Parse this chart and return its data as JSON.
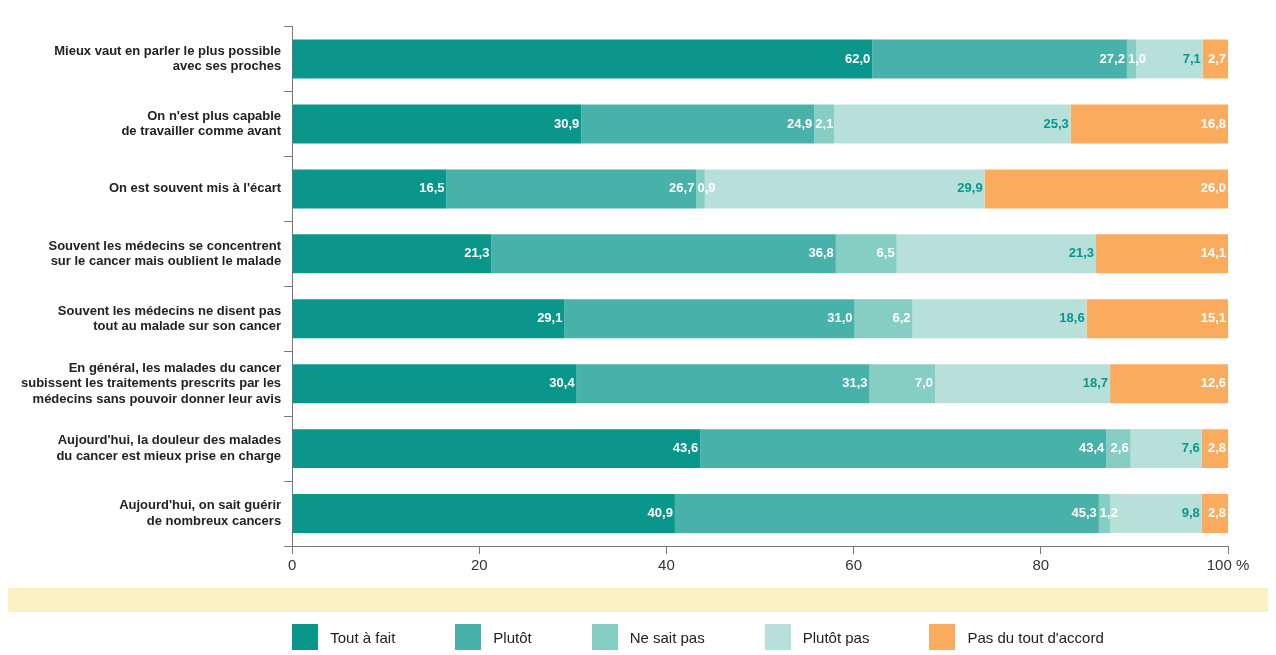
{
  "chart_data": {
    "type": "bar",
    "orientation": "horizontal",
    "stacked": true,
    "categories": [
      "Mieux vaut en parler le plus possible\navec ses proches",
      "On n'est plus capable\nde travailler comme avant",
      "On est souvent mis à l'écart",
      "Souvent les médecins se concentrent\nsur le cancer mais oublient le malade",
      "Souvent les médecins ne disent pas\ntout au malade sur son cancer",
      "En général, les malades du cancer\nsubissent les traitements prescrits par les\nmédecins sans pouvoir donner leur avis",
      "Aujourd'hui, la douleur des malades\ndu cancer est mieux prise en charge",
      "Aujourd'hui, on sait guérir\nde nombreux cancers"
    ],
    "series": [
      {
        "name": "Tout à fait",
        "color": "#0a968a",
        "values": [
          62.0,
          30.9,
          16.5,
          21.3,
          29.1,
          30.4,
          43.6,
          40.9
        ],
        "value_labels": [
          "62,0",
          "30,9",
          "16,5",
          "21,3",
          "29,1",
          "30,4",
          "43,6",
          "40,9"
        ]
      },
      {
        "name": "Plutôt",
        "color": "#48b2aa",
        "values": [
          27.2,
          24.9,
          26.7,
          36.8,
          31.0,
          31.3,
          43.4,
          45.3
        ],
        "value_labels": [
          "27,2",
          "24,9",
          "26,7",
          "36,8",
          "31,0",
          "31,3",
          "43,4",
          "45,3"
        ]
      },
      {
        "name": "Ne sait pas",
        "color": "#86cdc4",
        "values": [
          1.0,
          2.1,
          0.9,
          6.5,
          6.2,
          7.0,
          2.6,
          1.2
        ],
        "value_labels": [
          "1,0",
          "2,1",
          "0,9",
          "6,5",
          "6,2",
          "7,0",
          "2,6",
          "1,2"
        ]
      },
      {
        "name": "Plutôt pas",
        "color": "#b7e0db",
        "values": [
          7.1,
          25.3,
          29.9,
          21.3,
          18.6,
          18.7,
          7.6,
          9.8
        ],
        "value_labels": [
          "7,1",
          "25,3",
          "29,9",
          "21,3",
          "18,6",
          "18,7",
          "7,6",
          "9,8"
        ]
      },
      {
        "name": "Pas du tout d'accord",
        "color": "#fbab5e",
        "values": [
          2.7,
          16.8,
          26.0,
          14.1,
          15.1,
          12.6,
          2.8,
          2.8
        ],
        "value_labels": [
          "2,7",
          "16,8",
          "26,0",
          "14,1",
          "15,1",
          "12,6",
          "2,8",
          "2,8"
        ]
      }
    ],
    "xlim": [
      0,
      100
    ],
    "xticks": [
      0,
      20,
      40,
      60,
      80,
      {
        "value": 100,
        "label": "100 %"
      }
    ],
    "grid": false,
    "legend": "bottom"
  }
}
